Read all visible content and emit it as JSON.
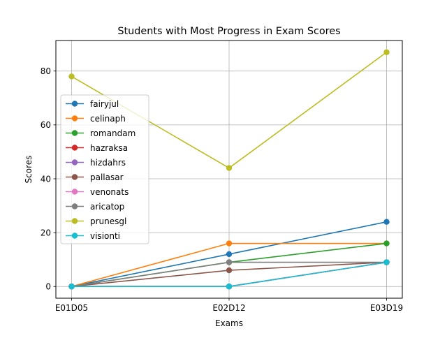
{
  "chart_data": {
    "type": "line",
    "title": "Students with Most Progress in Exam Scores",
    "xlabel": "Exams",
    "ylabel": "Scores",
    "categories": [
      "E01D05",
      "E02D12",
      "E03D19"
    ],
    "ylim": [
      -4.35,
      91.35
    ],
    "yticks": [
      0,
      20,
      40,
      60,
      80
    ],
    "grid": true,
    "legend_position": "center-left",
    "series": [
      {
        "name": "fairyjul",
        "color": "#1f77b4",
        "values": [
          0,
          12,
          24
        ]
      },
      {
        "name": "celinaph",
        "color": "#ff7f0e",
        "values": [
          0,
          16,
          16
        ]
      },
      {
        "name": "romandam",
        "color": "#2ca02c",
        "values": [
          0,
          9,
          16
        ]
      },
      {
        "name": "hazraksa",
        "color": "#d62728",
        "values": [
          0,
          0,
          9
        ]
      },
      {
        "name": "hizdahrs",
        "color": "#9467bd",
        "values": [
          0,
          0,
          9
        ]
      },
      {
        "name": "pallasar",
        "color": "#8c564b",
        "values": [
          0,
          6,
          9
        ]
      },
      {
        "name": "venonats",
        "color": "#e377c2",
        "values": [
          0,
          0,
          9
        ]
      },
      {
        "name": "aricatop",
        "color": "#7f7f7f",
        "values": [
          0,
          9,
          9
        ]
      },
      {
        "name": "prunesgl",
        "color": "#bcbd22",
        "values": [
          78,
          44,
          87
        ]
      },
      {
        "name": "visionti",
        "color": "#17becf",
        "values": [
          0,
          0,
          9
        ]
      }
    ]
  }
}
